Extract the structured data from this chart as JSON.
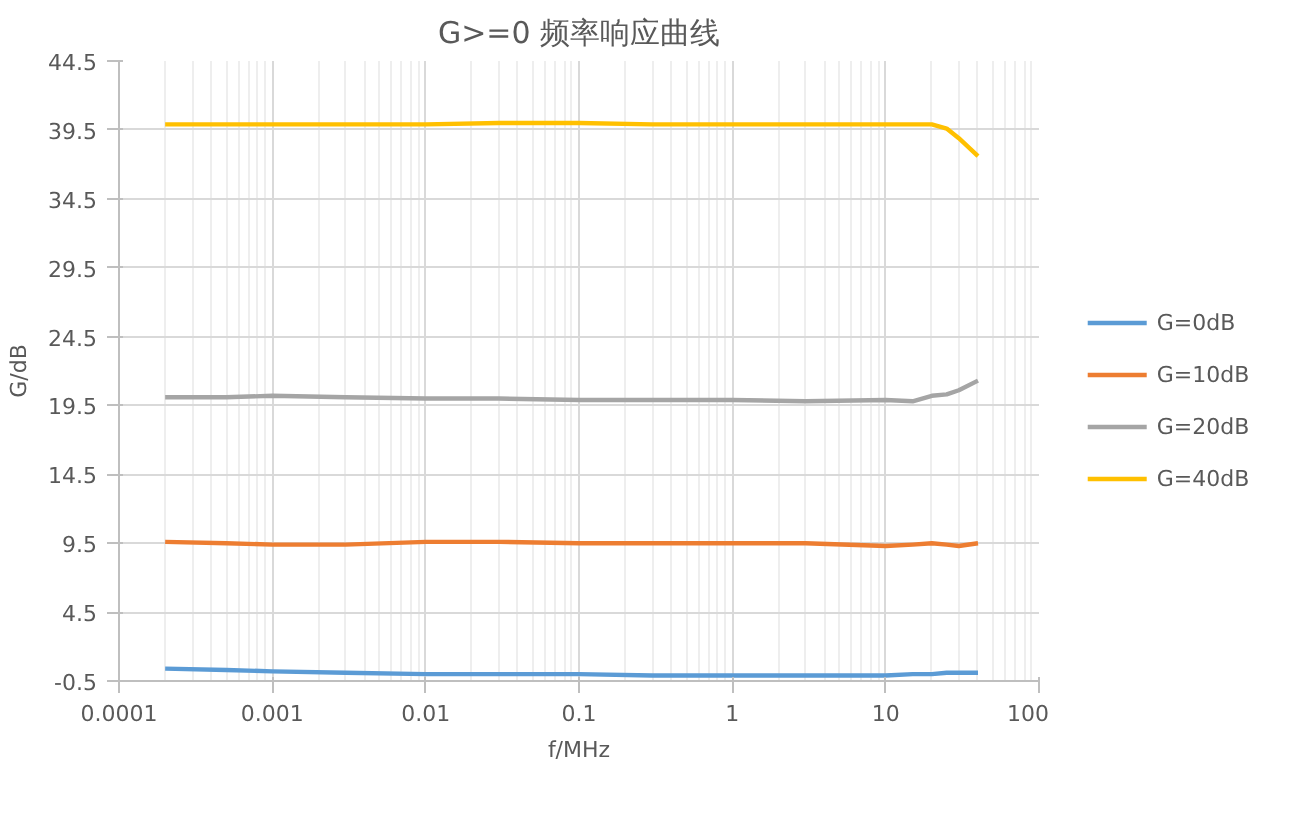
{
  "chart_data": {
    "type": "line",
    "title": "G>=0 频率响应曲线",
    "xlabel": "f/MHz",
    "ylabel": "G/dB",
    "log": "x",
    "x": [
      0.0002,
      0.0005,
      0.001,
      0.003,
      0.01,
      0.03,
      0.1,
      0.3,
      1,
      3,
      10,
      15,
      20,
      25,
      30,
      40
    ],
    "series": [
      {
        "name": "G=0dB",
        "color": "#5b9bd5",
        "values": [
          0.4,
          0.3,
          0.2,
          0.1,
          0.0,
          0.0,
          0.0,
          -0.1,
          -0.1,
          -0.1,
          -0.1,
          0.0,
          0.0,
          0.1,
          0.1,
          0.1
        ]
      },
      {
        "name": "G=10dB",
        "color": "#ed7d31",
        "values": [
          9.6,
          9.5,
          9.4,
          9.4,
          9.6,
          9.6,
          9.5,
          9.5,
          9.5,
          9.5,
          9.3,
          9.4,
          9.5,
          9.4,
          9.3,
          9.5
        ]
      },
      {
        "name": "G=20dB",
        "color": "#a5a5a5",
        "values": [
          20.1,
          20.1,
          20.2,
          20.1,
          20.0,
          20.0,
          19.9,
          19.9,
          19.9,
          19.8,
          19.9,
          19.8,
          20.2,
          20.3,
          20.6,
          21.3
        ]
      },
      {
        "name": "G=40dB",
        "color": "#ffc000",
        "values": [
          39.9,
          39.9,
          39.9,
          39.9,
          39.9,
          40.0,
          40.0,
          39.9,
          39.9,
          39.9,
          39.9,
          39.9,
          39.9,
          39.6,
          38.9,
          37.6
        ]
      }
    ],
    "xlim": [
      0.0001,
      100
    ],
    "xticks": [
      {
        "value": 0.0001,
        "label": "0.0001"
      },
      {
        "value": 0.001,
        "label": "0.001"
      },
      {
        "value": 0.01,
        "label": "0.01"
      },
      {
        "value": 0.1,
        "label": "0.1"
      },
      1,
      10,
      100
    ],
    "ylim": [
      -0.5,
      44.5
    ],
    "yticks": [
      -0.5,
      4.5,
      9.5,
      14.5,
      19.5,
      24.5,
      29.5,
      34.5,
      39.5,
      44.5
    ],
    "grid": true,
    "legend": "right",
    "line_style": "solid",
    "marker": "none"
  }
}
